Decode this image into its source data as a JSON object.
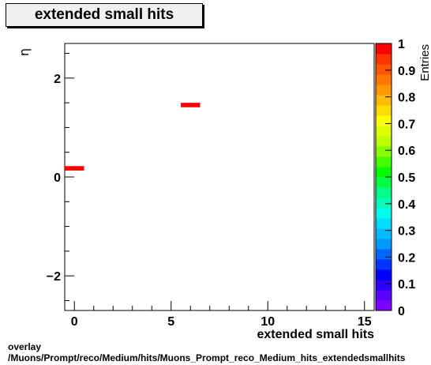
{
  "title": "extended small hits",
  "footer": {
    "line1": "overlay",
    "line2": "/Muons/Prompt/reco/Medium/hits/Muons_Prompt_reco_Medium_hits_extendedsmallhits"
  },
  "chart_data": {
    "type": "heatmap",
    "title": "extended small hits",
    "xlabel": "extended small hits",
    "ylabel": "η",
    "zlabel": "Entries",
    "xlim": [
      -0.5,
      15.5
    ],
    "ylim": [
      -2.7,
      2.7
    ],
    "zlim": [
      0,
      1
    ],
    "x_ticks": [
      0,
      5,
      10,
      15
    ],
    "y_ticks": [
      -2,
      0,
      2
    ],
    "z_ticks": [
      "0",
      "0.1",
      "0.2",
      "0.3",
      "0.4",
      "0.5",
      "0.6",
      "0.7",
      "0.8",
      "0.9",
      "1"
    ],
    "cells": [
      {
        "x0": -0.5,
        "x1": 0.5,
        "y0": 0.13,
        "y1": 0.22,
        "value": 1
      },
      {
        "x0": 5.5,
        "x1": 6.5,
        "y0": 1.41,
        "y1": 1.5,
        "value": 1
      }
    ],
    "palette": [
      "#7f00ff",
      "#5a00ff",
      "#2d00ff",
      "#0000ff",
      "#0033ff",
      "#0066ff",
      "#0099ff",
      "#00bbff",
      "#00ddff",
      "#00ffee",
      "#00ffbb",
      "#00ff88",
      "#00ff44",
      "#00ff00",
      "#44ff00",
      "#88ff00",
      "#bbff00",
      "#ddff00",
      "#ffff00",
      "#ffdd00",
      "#ffbb00",
      "#ff9900",
      "#ff7700",
      "#ff5500",
      "#ff3300",
      "#ff0000"
    ],
    "grid": false
  }
}
